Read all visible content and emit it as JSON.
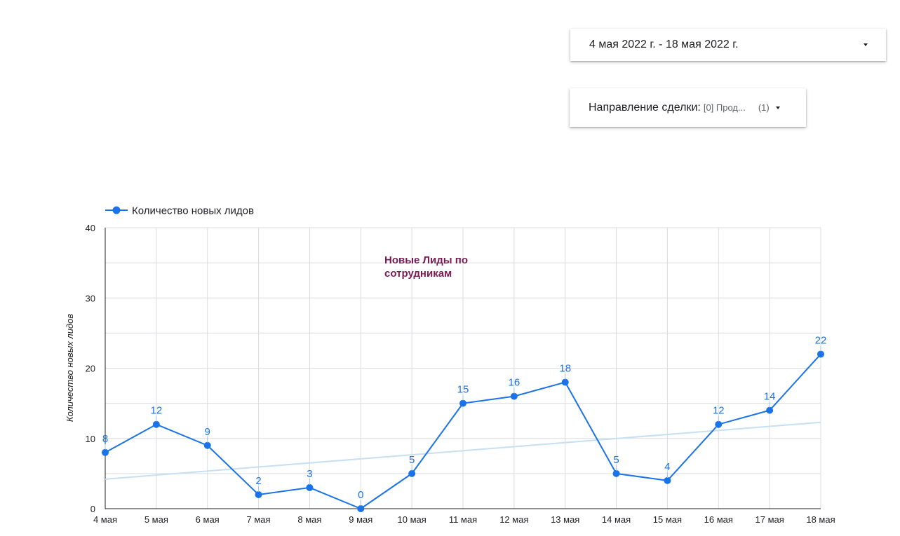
{
  "controls": {
    "date_range": {
      "label": "4 мая 2022 г. - 18 мая 2022 г."
    },
    "deal_filter": {
      "label": "Направление сделки",
      "colon": ":",
      "value": "[0] Прод...",
      "count": "(1)"
    }
  },
  "chart_data": {
    "type": "line",
    "title_lines": [
      "Новые Лиды по",
      "сотрудникам"
    ],
    "xlabel": "",
    "ylabel": "Количество новых лидов",
    "categories": [
      "4 мая",
      "5 мая",
      "6 мая",
      "7 мая",
      "8 мая",
      "9 мая",
      "10 мая",
      "11 мая",
      "12 мая",
      "13 мая",
      "14 мая",
      "15 мая",
      "16 мая",
      "17 мая",
      "18 мая"
    ],
    "series": [
      {
        "name": "Количество новых лидов",
        "color": "#1a73e8",
        "values": [
          8,
          12,
          9,
          2,
          3,
          0,
          5,
          15,
          16,
          18,
          5,
          4,
          12,
          14,
          22
        ]
      }
    ],
    "trendline": {
      "color": "#c6dff2",
      "start": 4.2,
      "end": 12.3
    },
    "ylim": [
      0,
      40
    ],
    "yticks": [
      0,
      10,
      20,
      30,
      40
    ],
    "grid": true,
    "legend_position": "top-left",
    "data_labels": true
  }
}
